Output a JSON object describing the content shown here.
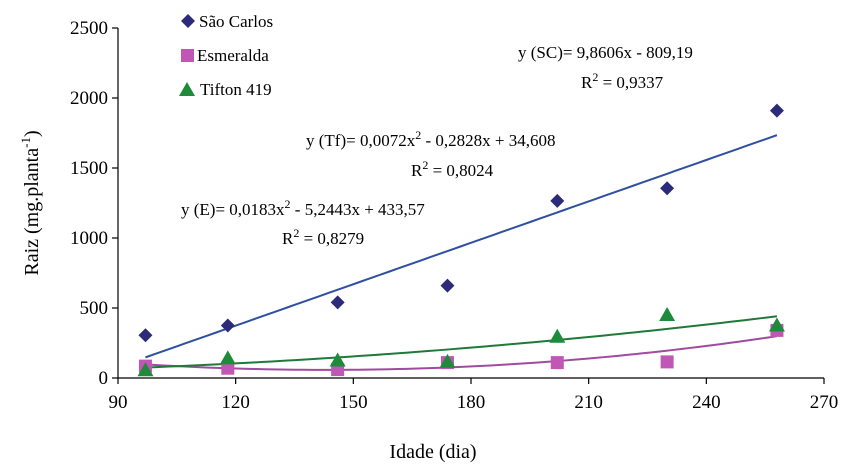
{
  "chart_data": {
    "type": "scatter",
    "xlabel": "Idade (dia)",
    "ylabel_main": "Raiz (mg.planta",
    "ylabel_sup": "-1",
    "ylabel_end": ")",
    "xlim": [
      90,
      270
    ],
    "ylim": [
      0,
      2500
    ],
    "xticks": [
      90,
      120,
      150,
      180,
      210,
      240,
      270
    ],
    "yticks": [
      0,
      500,
      1000,
      1500,
      2000,
      2500
    ],
    "grid": false,
    "legend_position": "top-left",
    "x": [
      97,
      118,
      146,
      174,
      202,
      230,
      258
    ],
    "series": [
      {
        "name": "São Carlos",
        "marker": "diamond",
        "color": "#2b2b7a",
        "line_color": "#2f4fa0",
        "values": [
          305,
          375,
          540,
          660,
          1265,
          1355,
          1910
        ],
        "fit": {
          "type": "linear",
          "a": 9.8606,
          "b": -809.19,
          "x_range": [
            97,
            258
          ]
        }
      },
      {
        "name": "Esmeralda",
        "marker": "square",
        "color": "#c157b5",
        "line_color": "#a04aa0",
        "values": [
          85,
          70,
          60,
          110,
          110,
          115,
          340
        ],
        "fit": {
          "type": "quadratic",
          "a": 0.0183,
          "b": -5.2443,
          "c": 433.57,
          "x_range": [
            97,
            258
          ]
        }
      },
      {
        "name": "Tifton 419",
        "marker": "triangle",
        "color": "#1f8a3a",
        "line_color": "#1f7a3a",
        "values": [
          55,
          140,
          125,
          115,
          295,
          450,
          375
        ],
        "fit": {
          "type": "quadratic",
          "a": 0.0072,
          "b": -0.2828,
          "c": 34.608,
          "x_range": [
            97,
            258
          ]
        }
      }
    ],
    "annotations": [
      {
        "id": "sc",
        "eq": "y (SC)= 9,8606x - 809,19",
        "r2_base": "R",
        "r2_sup": "2",
        "r2_value": " = 0,9337"
      },
      {
        "id": "tf",
        "eq_part1": "y (Tf)= 0,0072x",
        "eq_sup": "2",
        "eq_part2": " - 0,2828x + 34,608",
        "r2_base": "R",
        "r2_sup": "2",
        "r2_value": " = 0,8024"
      },
      {
        "id": "e",
        "eq_part1": "y (E)= 0,0183x",
        "eq_sup": "2",
        "eq_part2": " - 5,2443x + 433,57",
        "r2_base": "R",
        "r2_sup": "2",
        "r2_value": " = 0,8279"
      }
    ]
  }
}
